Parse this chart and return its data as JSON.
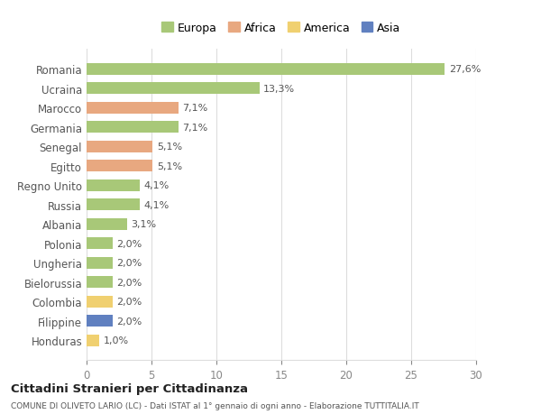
{
  "categories": [
    "Romania",
    "Ucraina",
    "Marocco",
    "Germania",
    "Senegal",
    "Egitto",
    "Regno Unito",
    "Russia",
    "Albania",
    "Polonia",
    "Ungheria",
    "Bielorussia",
    "Colombia",
    "Filippine",
    "Honduras"
  ],
  "values": [
    27.6,
    13.3,
    7.1,
    7.1,
    5.1,
    5.1,
    4.1,
    4.1,
    3.1,
    2.0,
    2.0,
    2.0,
    2.0,
    2.0,
    1.0
  ],
  "labels": [
    "27,6%",
    "13,3%",
    "7,1%",
    "7,1%",
    "5,1%",
    "5,1%",
    "4,1%",
    "4,1%",
    "3,1%",
    "2,0%",
    "2,0%",
    "2,0%",
    "2,0%",
    "2,0%",
    "1,0%"
  ],
  "colors": [
    "#a8c878",
    "#a8c878",
    "#e8a880",
    "#a8c878",
    "#e8a880",
    "#e8a880",
    "#a8c878",
    "#a8c878",
    "#a8c878",
    "#a8c878",
    "#a8c878",
    "#a8c878",
    "#f0d070",
    "#6080c0",
    "#f0d070"
  ],
  "legend_labels": [
    "Europa",
    "Africa",
    "America",
    "Asia"
  ],
  "legend_colors": [
    "#a8c878",
    "#e8a880",
    "#f0d070",
    "#6080c0"
  ],
  "title": "Cittadini Stranieri per Cittadinanza",
  "subtitle": "COMUNE DI OLIVETO LARIO (LC) - Dati ISTAT al 1° gennaio di ogni anno - Elaborazione TUTTITALIA.IT",
  "xlim": [
    0,
    30
  ],
  "xticks": [
    0,
    5,
    10,
    15,
    20,
    25,
    30
  ],
  "background_color": "#ffffff",
  "grid_color": "#dddddd"
}
